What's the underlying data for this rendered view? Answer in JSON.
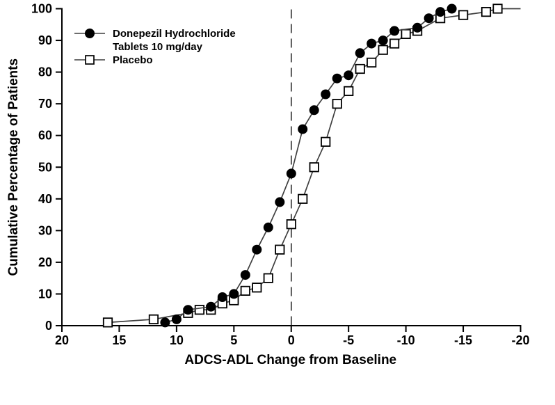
{
  "chart_data": {
    "type": "line",
    "title": "",
    "xlabel": "ADCS-ADL Change from Baseline",
    "ylabel": "Cumulative Percentage of Patients",
    "x_ticks": [
      20,
      15,
      10,
      5,
      0,
      -5,
      -10,
      -15,
      -20
    ],
    "y_ticks": [
      0,
      10,
      20,
      30,
      40,
      50,
      60,
      70,
      80,
      90,
      100
    ],
    "x_range": [
      20,
      -20
    ],
    "x_axis_reversed": true,
    "y_range": [
      0,
      100
    ],
    "grid": false,
    "legend_position": "top-left",
    "reference_line_x": 0,
    "reference_line_style": "dashed",
    "axis_color": "#000000",
    "line_color": "#3f3f3f",
    "marker_color": "#000000",
    "marker_fill_open": "#ffffff",
    "series": [
      {
        "id": "donepezil",
        "name": "Donepezil Hydrochloride Tablets 10 mg/day",
        "legend_label_line1": "Donepezil Hydrochloride",
        "legend_label_line2": "Tablets 10 mg/day",
        "marker": "filled-circle",
        "points": [
          [
            11,
            1
          ],
          [
            10,
            2
          ],
          [
            9,
            5
          ],
          [
            7,
            6
          ],
          [
            6,
            9
          ],
          [
            5,
            10
          ],
          [
            4,
            16
          ],
          [
            3,
            24
          ],
          [
            2,
            31
          ],
          [
            1,
            39
          ],
          [
            0,
            48
          ],
          [
            -1,
            62
          ],
          [
            -2,
            68
          ],
          [
            -3,
            73
          ],
          [
            -4,
            78
          ],
          [
            -5,
            79
          ],
          [
            -6,
            86
          ],
          [
            -7,
            89
          ],
          [
            -8,
            90
          ],
          [
            -9,
            93
          ],
          [
            -11,
            94
          ],
          [
            -12,
            97
          ],
          [
            -13,
            99
          ],
          [
            -14,
            100
          ]
        ]
      },
      {
        "id": "placebo",
        "name": "Placebo",
        "legend_label_line1": "Placebo",
        "legend_label_line2": "",
        "marker": "open-square",
        "points": [
          [
            16,
            1
          ],
          [
            12,
            2
          ],
          [
            9,
            4
          ],
          [
            8,
            5
          ],
          [
            7,
            5
          ],
          [
            6,
            7
          ],
          [
            5,
            8
          ],
          [
            4,
            11
          ],
          [
            3,
            12
          ],
          [
            2,
            15
          ],
          [
            1,
            24
          ],
          [
            0,
            32
          ],
          [
            -1,
            40
          ],
          [
            -2,
            50
          ],
          [
            -3,
            58
          ],
          [
            -4,
            70
          ],
          [
            -5,
            74
          ],
          [
            -6,
            81
          ],
          [
            -7,
            83
          ],
          [
            -8,
            87
          ],
          [
            -9,
            89
          ],
          [
            -10,
            92
          ],
          [
            -11,
            93
          ],
          [
            -13,
            97
          ],
          [
            -15,
            98
          ],
          [
            -17,
            99
          ],
          [
            -18,
            100
          ]
        ],
        "line_end_x": -20
      }
    ]
  }
}
